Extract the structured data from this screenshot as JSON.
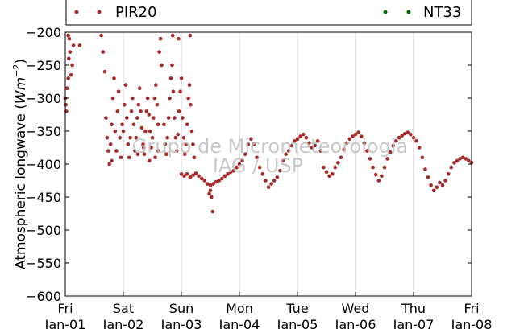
{
  "chart_data": {
    "type": "scatter",
    "ylabel_text": "Atmospheric longwave (",
    "ylabel_math": "Wm",
    "ylabel_exp": "−2",
    "ylabel_close": ")",
    "ylim": [
      -600,
      -200
    ],
    "y_ticks": [
      -200,
      -250,
      -300,
      -350,
      -400,
      -450,
      -500,
      -550,
      -600
    ],
    "y_tick_labels": [
      "−200",
      "−250",
      "−300",
      "−350",
      "−400",
      "−450",
      "−500",
      "−550",
      "−600"
    ],
    "xlim_days": [
      1,
      8
    ],
    "x_ticks": [
      {
        "day": 1,
        "line1": "Fri",
        "line2": "Jan-01"
      },
      {
        "day": 2,
        "line1": "Sat",
        "line2": "Jan-02"
      },
      {
        "day": 3,
        "line1": "Sun",
        "line2": "Jan-03"
      },
      {
        "day": 4,
        "line1": "Mon",
        "line2": "Jan-04"
      },
      {
        "day": 5,
        "line1": "Tue",
        "line2": "Jan-05"
      },
      {
        "day": 6,
        "line1": "Wed",
        "line2": "Jan-06"
      },
      {
        "day": 7,
        "line1": "Thu",
        "line2": "Jan-07"
      },
      {
        "day": 8,
        "line1": "Fri",
        "line2": "Jan-08"
      }
    ],
    "grid": "vertical",
    "legend_placement": "top",
    "series": [
      {
        "name": "PIR20",
        "color": "#a52a2a",
        "points": [
          [
            1.0,
            -300
          ],
          [
            1.01,
            -310
          ],
          [
            1.02,
            -320
          ],
          [
            1.03,
            -285
          ],
          [
            1.05,
            -270
          ],
          [
            1.06,
            -240
          ],
          [
            1.07,
            -210
          ],
          [
            1.08,
            -230
          ],
          [
            1.1,
            -265
          ],
          [
            1.12,
            -250
          ],
          [
            1.14,
            -220
          ],
          [
            1.25,
            -220
          ],
          [
            1.05,
            -205
          ],
          [
            1.62,
            -205
          ],
          [
            1.65,
            -230
          ],
          [
            1.68,
            -260
          ],
          [
            1.7,
            -330
          ],
          [
            1.72,
            -360
          ],
          [
            1.74,
            -380
          ],
          [
            1.76,
            -400
          ],
          [
            1.78,
            -370
          ],
          [
            1.8,
            -340
          ],
          [
            1.82,
            -300
          ],
          [
            1.84,
            -270
          ],
          [
            1.86,
            -350
          ],
          [
            1.88,
            -380
          ],
          [
            1.9,
            -320
          ],
          [
            1.92,
            -290
          ],
          [
            1.94,
            -360
          ],
          [
            1.96,
            -390
          ],
          [
            1.98,
            -340
          ],
          [
            2.0,
            -350
          ],
          [
            2.02,
            -310
          ],
          [
            2.04,
            -280
          ],
          [
            2.06,
            -330
          ],
          [
            2.08,
            -370
          ],
          [
            2.1,
            -390
          ],
          [
            2.12,
            -360
          ],
          [
            2.14,
            -320
          ],
          [
            2.16,
            -300
          ],
          [
            2.18,
            -340
          ],
          [
            2.2,
            -380
          ],
          [
            2.22,
            -360
          ],
          [
            2.24,
            -330
          ],
          [
            2.26,
            -310
          ],
          [
            2.28,
            -285
          ],
          [
            2.3,
            -320
          ],
          [
            2.32,
            -345
          ],
          [
            2.34,
            -370
          ],
          [
            2.36,
            -385
          ],
          [
            2.38,
            -350
          ],
          [
            2.4,
            -320
          ],
          [
            2.42,
            -300
          ],
          [
            2.44,
            -325
          ],
          [
            2.46,
            -350
          ],
          [
            2.48,
            -375
          ],
          [
            2.5,
            -360
          ],
          [
            2.52,
            -330
          ],
          [
            2.54,
            -300
          ],
          [
            2.56,
            -280
          ],
          [
            2.58,
            -310
          ],
          [
            2.6,
            -340
          ],
          [
            2.62,
            -230
          ],
          [
            2.64,
            -210
          ],
          [
            2.66,
            -250
          ],
          [
            2.7,
            -340
          ],
          [
            2.72,
            -370
          ],
          [
            2.74,
            -385
          ],
          [
            2.76,
            -360
          ],
          [
            2.78,
            -330
          ],
          [
            2.8,
            -300
          ],
          [
            2.82,
            -270
          ],
          [
            2.84,
            -250
          ],
          [
            2.86,
            -290
          ],
          [
            2.88,
            -330
          ],
          [
            2.9,
            -360
          ],
          [
            2.92,
            -380
          ],
          [
            2.94,
            -355
          ],
          [
            2.96,
            -320
          ],
          [
            2.98,
            -290
          ],
          [
            3.0,
            -270
          ],
          [
            3.02,
            -330
          ],
          [
            3.04,
            -360
          ],
          [
            3.06,
            -385
          ],
          [
            3.08,
            -370
          ],
          [
            3.1,
            -340
          ],
          [
            3.12,
            -300
          ],
          [
            3.14,
            -280
          ],
          [
            3.16,
            -310
          ],
          [
            3.18,
            -350
          ],
          [
            3.2,
            -370
          ],
          [
            3.22,
            -390
          ],
          [
            2.6,
            -380
          ],
          [
            2.55,
            -390
          ],
          [
            2.45,
            -395
          ],
          [
            2.35,
            -375
          ],
          [
            2.25,
            -385
          ],
          [
            1.8,
            -395
          ],
          [
            2.85,
            -205
          ],
          [
            2.95,
            -210
          ],
          [
            3.15,
            -205
          ],
          [
            3.0,
            -415
          ],
          [
            3.05,
            -418
          ],
          [
            3.1,
            -415
          ],
          [
            3.15,
            -420
          ],
          [
            3.2,
            -417
          ],
          [
            3.25,
            -414
          ],
          [
            3.3,
            -418
          ],
          [
            3.35,
            -422
          ],
          [
            3.4,
            -425
          ],
          [
            3.45,
            -430
          ],
          [
            3.5,
            -432
          ],
          [
            3.55,
            -430
          ],
          [
            3.6,
            -427
          ],
          [
            3.65,
            -425
          ],
          [
            3.7,
            -422
          ],
          [
            3.75,
            -418
          ],
          [
            3.8,
            -415
          ],
          [
            3.85,
            -412
          ],
          [
            3.9,
            -410
          ],
          [
            3.95,
            -405
          ],
          [
            3.5,
            -440
          ],
          [
            3.52,
            -450
          ],
          [
            3.54,
            -472
          ],
          [
            3.48,
            -445
          ],
          [
            4.0,
            -400
          ],
          [
            4.05,
            -395
          ],
          [
            4.1,
            -385
          ],
          [
            4.15,
            -370
          ],
          [
            4.2,
            -362
          ],
          [
            4.25,
            -370
          ],
          [
            4.3,
            -390
          ],
          [
            4.35,
            -405
          ],
          [
            4.4,
            -415
          ],
          [
            4.45,
            -425
          ],
          [
            4.5,
            -435
          ],
          [
            4.55,
            -430
          ],
          [
            4.6,
            -425
          ],
          [
            4.65,
            -420
          ],
          [
            4.7,
            -410
          ],
          [
            4.75,
            -395
          ],
          [
            4.8,
            -385
          ],
          [
            4.85,
            -380
          ],
          [
            4.9,
            -372
          ],
          [
            4.95,
            -365
          ],
          [
            5.0,
            -362
          ],
          [
            5.05,
            -358
          ],
          [
            5.1,
            -355
          ],
          [
            5.15,
            -360
          ],
          [
            5.2,
            -368
          ],
          [
            5.25,
            -375
          ],
          [
            5.3,
            -372
          ],
          [
            5.35,
            -365
          ],
          [
            5.4,
            -380
          ],
          [
            5.45,
            -405
          ],
          [
            5.5,
            -412
          ],
          [
            5.55,
            -418
          ],
          [
            5.6,
            -415
          ],
          [
            5.65,
            -405
          ],
          [
            5.7,
            -398
          ],
          [
            5.75,
            -390
          ],
          [
            5.8,
            -378
          ],
          [
            5.85,
            -368
          ],
          [
            5.9,
            -362
          ],
          [
            5.95,
            -358
          ],
          [
            6.0,
            -355
          ],
          [
            6.05,
            -352
          ],
          [
            6.1,
            -358
          ],
          [
            6.15,
            -368
          ],
          [
            6.2,
            -380
          ],
          [
            6.25,
            -392
          ],
          [
            6.3,
            -405
          ],
          [
            6.35,
            -416
          ],
          [
            6.4,
            -425
          ],
          [
            6.45,
            -418
          ],
          [
            6.5,
            -405
          ],
          [
            6.55,
            -392
          ],
          [
            6.6,
            -382
          ],
          [
            6.65,
            -372
          ],
          [
            6.7,
            -365
          ],
          [
            6.75,
            -360
          ],
          [
            6.8,
            -357
          ],
          [
            6.85,
            -354
          ],
          [
            6.9,
            -352
          ],
          [
            6.95,
            -355
          ],
          [
            7.0,
            -360
          ],
          [
            7.05,
            -365
          ],
          [
            7.1,
            -375
          ],
          [
            7.15,
            -390
          ],
          [
            7.2,
            -408
          ],
          [
            7.25,
            -420
          ],
          [
            7.3,
            -432
          ],
          [
            7.35,
            -440
          ],
          [
            7.4,
            -435
          ],
          [
            7.45,
            -428
          ],
          [
            7.5,
            -432
          ],
          [
            7.55,
            -425
          ],
          [
            7.6,
            -415
          ],
          [
            7.65,
            -405
          ],
          [
            7.7,
            -398
          ],
          [
            7.75,
            -395
          ],
          [
            7.8,
            -392
          ],
          [
            7.85,
            -390
          ],
          [
            7.9,
            -392
          ],
          [
            7.95,
            -395
          ],
          [
            8.0,
            -398
          ]
        ]
      },
      {
        "name": "NT33",
        "color": "#006400",
        "points": []
      }
    ]
  },
  "watermark": {
    "line1": "Grupo de Micrometeorologia",
    "line2": "IAG / USP"
  }
}
